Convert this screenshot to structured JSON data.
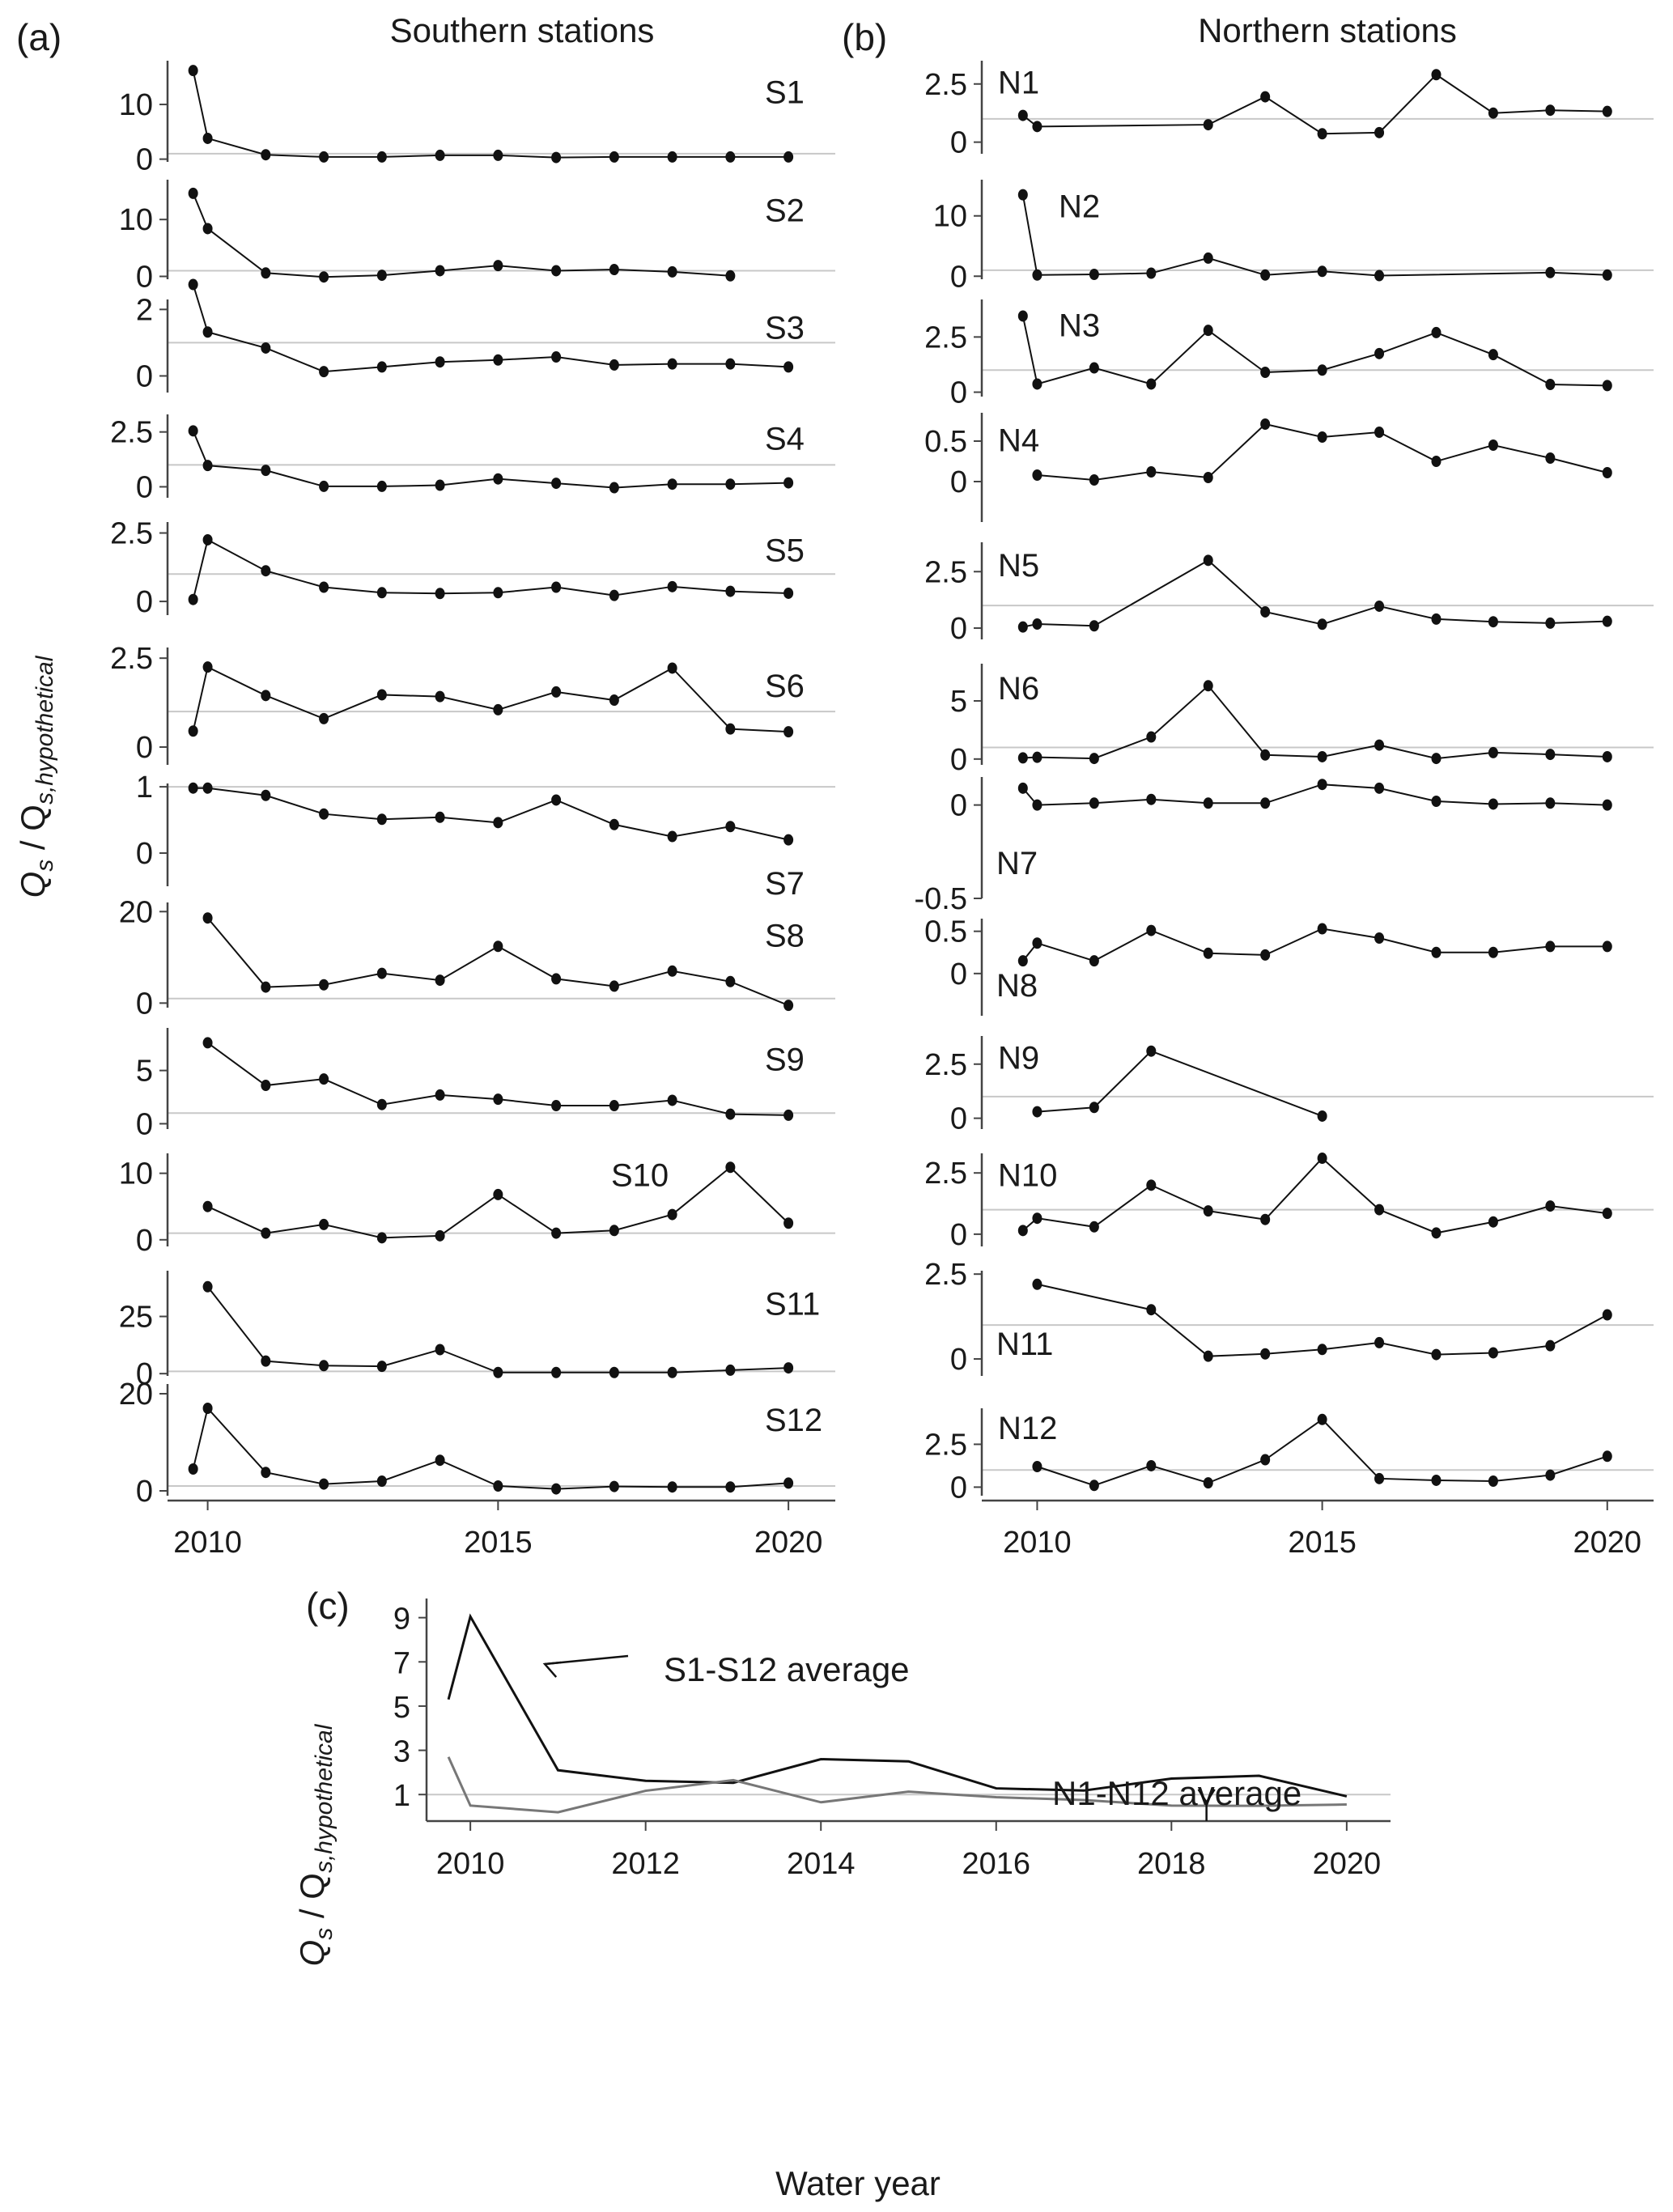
{
  "figure": {
    "y_axis_label_main": "Q",
    "y_axis_label_sub_s": "s",
    "y_axis_label_sep": " / Q",
    "y_axis_label_sub_hyp": "s,hypothetical",
    "x_axis_label": "Water year"
  },
  "chart_data": [
    {
      "id": "a",
      "panel_letter": "(a)",
      "title": "Southern stations",
      "type": "line",
      "marker": "circle",
      "xlabel": "",
      "ylabel": "Qs / Qs,hypothetical",
      "x_ticks": [
        2010,
        2015,
        2020
      ],
      "xlim": [
        2009.1,
        2020.5
      ],
      "reference_line": 1,
      "subplots": [
        {
          "name": "S1",
          "label_pos": "right",
          "yticks": [
            0,
            10
          ],
          "ylim": [
            -0.5,
            18
          ],
          "x": [
            2009.75,
            2010,
            2011,
            2012,
            2013,
            2014,
            2015,
            2016,
            2017,
            2018,
            2019,
            2020
          ],
          "y": [
            16.2,
            3.8,
            0.8,
            0.4,
            0.4,
            0.7,
            0.7,
            0.3,
            0.4,
            0.4,
            0.4,
            0.4
          ]
        },
        {
          "name": "S2",
          "label_pos": "right",
          "yticks": [
            0,
            10
          ],
          "ylim": [
            -0.5,
            17
          ],
          "x": [
            2009.75,
            2010,
            2011,
            2012,
            2013,
            2014,
            2015,
            2016,
            2017,
            2018,
            2019
          ],
          "y": [
            14.6,
            8.4,
            0.6,
            -0.1,
            0.2,
            1.0,
            1.9,
            1.0,
            1.2,
            0.8,
            0.1
          ]
        },
        {
          "name": "S3",
          "label_pos": "right",
          "yticks": [
            0,
            2
          ],
          "ylim": [
            -0.5,
            2.3
          ],
          "x": [
            2009.75,
            2010,
            2011,
            2012,
            2013,
            2014,
            2015,
            2016,
            2017,
            2018,
            2019,
            2020
          ],
          "y": [
            2.75,
            1.32,
            0.84,
            0.13,
            0.27,
            0.42,
            0.48,
            0.57,
            0.33,
            0.36,
            0.36,
            0.27
          ]
        },
        {
          "name": "S4",
          "label_pos": "right",
          "yticks": [
            0,
            2.5
          ],
          "ylim": [
            -0.5,
            3.3
          ],
          "x": [
            2009.75,
            2010,
            2011,
            2012,
            2013,
            2014,
            2015,
            2016,
            2017,
            2018,
            2019,
            2020
          ],
          "y": [
            2.55,
            0.97,
            0.75,
            0.02,
            0.02,
            0.07,
            0.36,
            0.16,
            -0.04,
            0.12,
            0.12,
            0.18
          ]
        },
        {
          "name": "S5",
          "label_pos": "right",
          "yticks": [
            0,
            2.5
          ],
          "ylim": [
            -0.5,
            2.9
          ],
          "x": [
            2009.75,
            2010,
            2011,
            2012,
            2013,
            2014,
            2015,
            2016,
            2017,
            2018,
            2019,
            2020
          ],
          "y": [
            0.07,
            2.25,
            1.12,
            0.52,
            0.32,
            0.29,
            0.32,
            0.52,
            0.22,
            0.54,
            0.37,
            0.3
          ]
        },
        {
          "name": "S6",
          "label_pos": "right",
          "yticks": [
            0,
            2.5
          ],
          "ylim": [
            -0.5,
            2.8
          ],
          "x": [
            2009.75,
            2010,
            2011,
            2012,
            2013,
            2014,
            2015,
            2016,
            2017,
            2018,
            2019,
            2020
          ],
          "y": [
            0.45,
            2.25,
            1.45,
            0.8,
            1.47,
            1.42,
            1.05,
            1.55,
            1.32,
            2.22,
            0.51,
            0.43
          ]
        },
        {
          "name": "S7",
          "label_pos": "right-low",
          "yticks": [
            0,
            1
          ],
          "ylim": [
            -0.5,
            1.05
          ],
          "x": [
            2009.75,
            2010,
            2011,
            2012,
            2013,
            2014,
            2015,
            2016,
            2017,
            2018,
            2019,
            2020
          ],
          "y": [
            0.98,
            0.98,
            0.87,
            0.59,
            0.51,
            0.54,
            0.46,
            0.8,
            0.43,
            0.25,
            0.4,
            0.2
          ]
        },
        {
          "name": "S8",
          "label_pos": "right",
          "yticks": [
            0,
            20
          ],
          "ylim": [
            -1,
            22
          ],
          "x": [
            2010,
            2011,
            2012,
            2013,
            2014,
            2015,
            2016,
            2017,
            2018,
            2019,
            2020
          ],
          "y": [
            18.6,
            3.5,
            4.0,
            6.5,
            5.0,
            12.4,
            5.3,
            3.7,
            7.0,
            4.7,
            -0.5
          ]
        },
        {
          "name": "S9",
          "label_pos": "right",
          "yticks": [
            0,
            5
          ],
          "ylim": [
            -0.5,
            9
          ],
          "x": [
            2010,
            2011,
            2012,
            2013,
            2014,
            2015,
            2016,
            2017,
            2018,
            2019,
            2020
          ],
          "y": [
            7.6,
            3.6,
            4.2,
            1.8,
            2.7,
            2.3,
            1.7,
            1.7,
            2.2,
            0.9,
            0.8
          ]
        },
        {
          "name": "S10",
          "label_pos": "mid-right",
          "yticks": [
            0,
            10
          ],
          "ylim": [
            -1,
            13
          ],
          "x": [
            2010,
            2011,
            2012,
            2013,
            2014,
            2015,
            2016,
            2017,
            2018,
            2019,
            2020
          ],
          "y": [
            5.0,
            1.0,
            2.3,
            0.3,
            0.6,
            6.8,
            1.0,
            1.4,
            3.8,
            10.9,
            2.5
          ]
        },
        {
          "name": "S11",
          "label_pos": "right",
          "yticks": [
            0,
            25
          ],
          "ylim": [
            -1,
            45
          ],
          "x": [
            2010,
            2011,
            2012,
            2013,
            2014,
            2015,
            2016,
            2017,
            2018,
            2019,
            2020
          ],
          "y": [
            38.0,
            5.5,
            3.5,
            3.2,
            10.5,
            0.5,
            0.5,
            0.5,
            0.5,
            1.5,
            2.5
          ]
        },
        {
          "name": "S12",
          "label_pos": "right",
          "yticks": [
            0,
            20
          ],
          "ylim": [
            -1,
            22
          ],
          "x": [
            2009.75,
            2010,
            2011,
            2012,
            2013,
            2014,
            2015,
            2016,
            2017,
            2018,
            2019,
            2020
          ],
          "y": [
            4.5,
            17.0,
            3.8,
            1.4,
            2.0,
            6.3,
            1.0,
            0.4,
            0.9,
            0.8,
            0.8,
            1.6
          ]
        }
      ]
    },
    {
      "id": "b",
      "panel_letter": "(b)",
      "title": "Northern stations",
      "type": "line",
      "marker": "circle",
      "xlabel": "",
      "ylabel": "Qs / Qs,hypothetical",
      "x_ticks": [
        2010,
        2015,
        2020
      ],
      "xlim": [
        2009.0,
        2020.5
      ],
      "reference_line": 1,
      "subplots": [
        {
          "name": "N1",
          "label_pos": "left",
          "yticks": [
            0,
            2.5
          ],
          "ylim": [
            -0.5,
            3.5
          ],
          "x": [
            2009.75,
            2010,
            2013,
            2014,
            2015,
            2016,
            2017,
            2018,
            2019,
            2020
          ],
          "y": [
            1.15,
            0.67,
            0.75,
            1.95,
            0.36,
            0.41,
            2.9,
            1.25,
            1.37,
            1.32
          ]
        },
        {
          "name": "N2",
          "label_pos": "left-inset",
          "yticks": [
            0,
            10
          ],
          "ylim": [
            -0.5,
            16
          ],
          "x": [
            2009.75,
            2010,
            2011,
            2012,
            2013,
            2014,
            2015,
            2016,
            2019,
            2020
          ],
          "y": [
            13.5,
            0.2,
            0.3,
            0.5,
            3.0,
            0.2,
            0.8,
            0.1,
            0.6,
            0.2
          ]
        },
        {
          "name": "N3",
          "label_pos": "left-inset",
          "yticks": [
            0,
            2.5
          ],
          "ylim": [
            -0.2,
            4.2
          ],
          "x": [
            2009.75,
            2010,
            2011,
            2012,
            2013,
            2014,
            2015,
            2016,
            2017,
            2018,
            2019,
            2020
          ],
          "y": [
            3.45,
            0.37,
            1.1,
            0.37,
            2.8,
            0.9,
            1.0,
            1.75,
            2.7,
            1.7,
            0.35,
            0.3
          ]
        },
        {
          "name": "N4",
          "label_pos": "left",
          "yticks": [
            0,
            0.5
          ],
          "ylim": [
            -0.5,
            0.85
          ],
          "x": [
            2010,
            2011,
            2012,
            2013,
            2014,
            2015,
            2016,
            2017,
            2018,
            2019,
            2020
          ],
          "y": [
            0.08,
            0.02,
            0.12,
            0.05,
            0.71,
            0.55,
            0.61,
            0.25,
            0.45,
            0.29,
            0.11
          ]
        },
        {
          "name": "N5",
          "label_pos": "left",
          "yticks": [
            0,
            2.5
          ],
          "ylim": [
            -0.5,
            3.8
          ],
          "x": [
            2009.75,
            2010,
            2011,
            2013,
            2014,
            2015,
            2016,
            2017,
            2018,
            2019,
            2020
          ],
          "y": [
            0.05,
            0.18,
            0.1,
            3.0,
            0.72,
            0.17,
            0.97,
            0.4,
            0.28,
            0.22,
            0.3
          ]
        },
        {
          "name": "N6",
          "label_pos": "left",
          "yticks": [
            0,
            5
          ],
          "ylim": [
            -0.5,
            8.2
          ],
          "x": [
            2009.75,
            2010,
            2011,
            2012,
            2013,
            2014,
            2015,
            2016,
            2017,
            2018,
            2019,
            2020
          ],
          "y": [
            0.1,
            0.15,
            0.05,
            1.9,
            6.3,
            0.35,
            0.2,
            1.2,
            0.05,
            0.55,
            0.4,
            0.2
          ]
        },
        {
          "name": "N7",
          "label_pos": "left-low",
          "yticks": [
            -0.5,
            0
          ],
          "ylim": [
            -0.5,
            0.15
          ],
          "x": [
            2009.75,
            2010,
            2011,
            2012,
            2013,
            2014,
            2015,
            2016,
            2017,
            2018,
            2019,
            2020
          ],
          "y": [
            0.09,
            0.0,
            0.01,
            0.03,
            0.01,
            0.01,
            0.11,
            0.09,
            0.02,
            0.005,
            0.01,
            0.0
          ]
        },
        {
          "name": "N8",
          "label_pos": "left-low",
          "yticks": [
            0,
            0.5
          ],
          "ylim": [
            -0.5,
            0.65
          ],
          "x": [
            2009.75,
            2010,
            2011,
            2012,
            2013,
            2014,
            2015,
            2016,
            2017,
            2018,
            2019,
            2020
          ],
          "y": [
            0.15,
            0.36,
            0.15,
            0.51,
            0.24,
            0.22,
            0.53,
            0.42,
            0.25,
            0.25,
            0.32,
            0.32
          ]
        },
        {
          "name": "N9",
          "label_pos": "left",
          "yticks": [
            0,
            2.5
          ],
          "ylim": [
            -0.5,
            3.8
          ],
          "x": [
            2010,
            2011,
            2012,
            2015
          ],
          "y": [
            0.3,
            0.5,
            3.1,
            0.1
          ]
        },
        {
          "name": "N10",
          "label_pos": "left",
          "yticks": [
            0,
            2.5
          ],
          "ylim": [
            -0.5,
            3.3
          ],
          "x": [
            2009.75,
            2010,
            2011,
            2012,
            2013,
            2014,
            2015,
            2016,
            2017,
            2018,
            2019,
            2020
          ],
          "y": [
            0.15,
            0.65,
            0.3,
            2.0,
            0.95,
            0.6,
            3.1,
            1.0,
            0.05,
            0.5,
            1.15,
            0.85
          ]
        },
        {
          "name": "N11",
          "label_pos": "left-low",
          "yticks": [
            0,
            2.5
          ],
          "ylim": [
            -0.5,
            2.6
          ],
          "x": [
            2010,
            2012,
            2013,
            2014,
            2015,
            2016,
            2017,
            2018,
            2019,
            2020
          ],
          "y": [
            2.2,
            1.45,
            0.08,
            0.15,
            0.28,
            0.48,
            0.13,
            0.18,
            0.39,
            1.3
          ]
        },
        {
          "name": "N12",
          "label_pos": "left",
          "yticks": [
            0,
            2.5
          ],
          "ylim": [
            -0.5,
            4.6
          ],
          "x": [
            2010,
            2011,
            2012,
            2013,
            2014,
            2015,
            2016,
            2017,
            2018,
            2019,
            2020
          ],
          "y": [
            1.2,
            0.1,
            1.25,
            0.25,
            1.6,
            3.95,
            0.5,
            0.4,
            0.35,
            0.7,
            1.8
          ]
        }
      ]
    },
    {
      "id": "c",
      "panel_letter": "(c)",
      "type": "line",
      "title": "",
      "xlabel": "Water year",
      "ylabel": "Qs / Qs,hypothetical",
      "x_ticks": [
        2010,
        2012,
        2014,
        2016,
        2018,
        2020
      ],
      "y_ticks": [
        1,
        3,
        5,
        7,
        9
      ],
      "xlim": [
        2009.5,
        2020.5
      ],
      "ylim": [
        -0.2,
        9.5
      ],
      "reference_line": 1,
      "grid": false,
      "series": [
        {
          "name": "S1-S12 average",
          "color": "#111111",
          "x": [
            2009.75,
            2010,
            2011,
            2012,
            2013,
            2014,
            2015,
            2016,
            2017,
            2018,
            2019,
            2020
          ],
          "y": [
            5.3,
            9.05,
            2.1,
            1.62,
            1.53,
            2.6,
            2.5,
            1.28,
            1.18,
            1.72,
            1.85,
            0.92
          ]
        },
        {
          "name": "N1-N12 average",
          "color": "#777777",
          "x": [
            2009.75,
            2010,
            2011,
            2012,
            2013,
            2014,
            2015,
            2016,
            2017,
            2018,
            2019,
            2020
          ],
          "y": [
            2.7,
            0.5,
            0.2,
            1.17,
            1.65,
            0.65,
            1.13,
            0.88,
            0.75,
            0.5,
            0.49,
            0.55
          ]
        }
      ],
      "annotations": [
        {
          "text": "S1-S12 average",
          "target_series": "S1-S12 average",
          "arrow_to": [
            2010.85,
            6.9
          ]
        },
        {
          "text": "N1-N12 average",
          "target_series": "N1-N12 average",
          "arrow_to": [
            2018.4,
            0.65
          ]
        }
      ]
    }
  ]
}
